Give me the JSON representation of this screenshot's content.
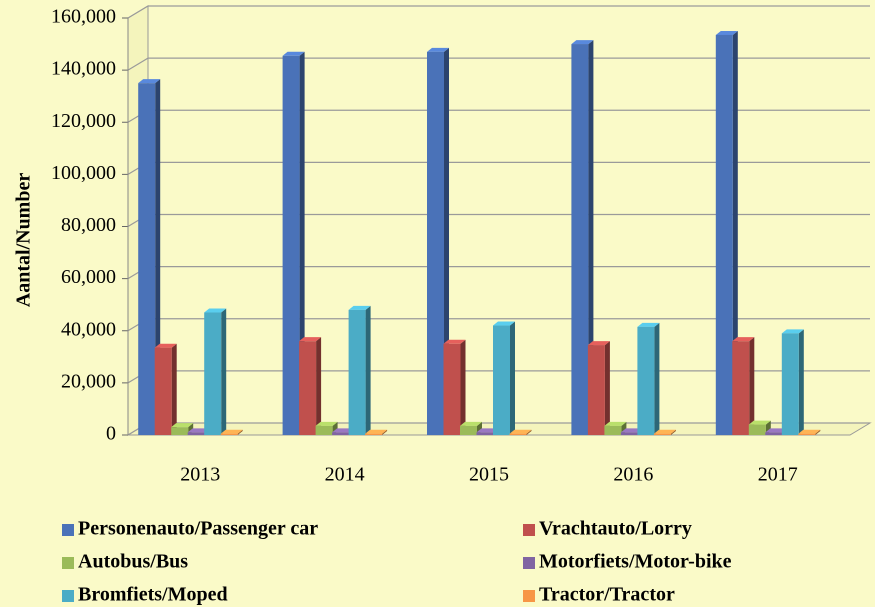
{
  "chart_data": {
    "type": "bar3d",
    "y_label": "Aantal/Number",
    "categories": [
      "2013",
      "2014",
      "2015",
      "2016",
      "2017"
    ],
    "series": [
      {
        "name": "Personenauto/Passenger car",
        "color": "#4a72b8",
        "values": [
          135000,
          145500,
          147000,
          150000,
          153500
        ]
      },
      {
        "name": "Vrachtauto/Lorry",
        "color": "#c0504d",
        "values": [
          33500,
          36000,
          35000,
          34500,
          36000
        ]
      },
      {
        "name": "Autobus/Bus",
        "color": "#9bbb59",
        "values": [
          3000,
          3500,
          3500,
          3500,
          4000
        ]
      },
      {
        "name": "Motorfiets/Motor-bike",
        "color": "#8064a2",
        "values": [
          1000,
          1000,
          1000,
          1000,
          1000
        ]
      },
      {
        "name": "Bromfiets/Moped",
        "color": "#4bacc6",
        "values": [
          47000,
          48000,
          42000,
          41500,
          39000
        ]
      },
      {
        "name": "Tractor/Tractor",
        "color": "#f79646",
        "values": [
          500,
          500,
          500,
          500,
          500
        ]
      }
    ],
    "ylim": [
      0,
      160000
    ],
    "yticks": [
      0,
      {
        "value": 20000,
        "label": "20,000"
      },
      {
        "value": 40000,
        "label": "40,000"
      },
      {
        "value": 60000,
        "label": "60,000"
      },
      {
        "value": 80000,
        "label": "80,000"
      },
      {
        "value": 100000,
        "label": "100,000"
      },
      {
        "value": 120000,
        "label": "120,000"
      },
      {
        "value": 140000,
        "label": "140,000"
      },
      {
        "value": 160000,
        "label": "160,000"
      }
    ],
    "grid": true
  }
}
